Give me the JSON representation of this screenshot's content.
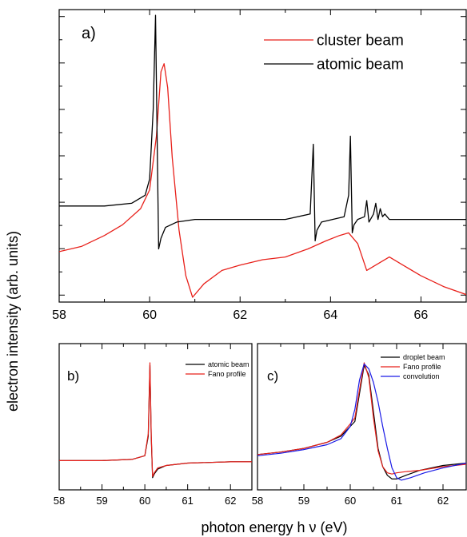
{
  "figure": {
    "ylabel": "electron intensity (arb. units)",
    "xlabel": "photon energy h ν (eV)"
  },
  "chart_data": [
    {
      "panel": "a)",
      "type": "line",
      "xlim": [
        58,
        67
      ],
      "xticks": [
        58,
        60,
        62,
        64,
        66
      ],
      "ylim": [
        0,
        1
      ],
      "yticks_shown_without_labels": true,
      "legend": {
        "placement": "top-right",
        "entries": [
          "cluster beam",
          "atomic beam"
        ]
      },
      "series": [
        {
          "name": "cluster beam",
          "color": "#e8211b",
          "x": [
            58.0,
            58.5,
            59.0,
            59.4,
            59.8,
            60.0,
            60.15,
            60.25,
            60.32,
            60.4,
            60.5,
            60.65,
            60.8,
            60.95,
            61.2,
            61.6,
            62.0,
            62.5,
            63.0,
            63.5,
            63.9,
            64.2,
            64.4,
            64.6,
            64.8,
            65.0,
            65.3,
            65.6,
            66.0,
            66.5,
            67.0
          ],
          "y": [
            0.17,
            0.19,
            0.23,
            0.27,
            0.33,
            0.4,
            0.6,
            0.84,
            0.87,
            0.78,
            0.52,
            0.25,
            0.08,
            0.0,
            0.05,
            0.1,
            0.12,
            0.14,
            0.15,
            0.18,
            0.21,
            0.23,
            0.24,
            0.2,
            0.1,
            0.12,
            0.15,
            0.12,
            0.08,
            0.04,
            0.01
          ]
        },
        {
          "name": "atomic beam",
          "color": "#000000",
          "x": [
            58.0,
            59.0,
            59.6,
            59.9,
            60.0,
            60.08,
            60.13,
            60.17,
            60.2,
            60.25,
            60.35,
            60.6,
            61.0,
            62.0,
            63.0,
            63.55,
            63.62,
            63.66,
            63.7,
            63.8,
            64.3,
            64.4,
            64.44,
            64.48,
            64.52,
            64.6,
            64.75,
            64.8,
            64.85,
            64.95,
            65.0,
            65.05,
            65.1,
            65.15,
            65.2,
            65.3,
            66.0,
            67.0
          ],
          "y": [
            0.34,
            0.34,
            0.35,
            0.38,
            0.44,
            0.7,
            1.05,
            0.55,
            0.18,
            0.22,
            0.26,
            0.28,
            0.29,
            0.29,
            0.29,
            0.31,
            0.57,
            0.21,
            0.25,
            0.28,
            0.3,
            0.38,
            0.6,
            0.24,
            0.27,
            0.29,
            0.3,
            0.36,
            0.28,
            0.31,
            0.35,
            0.29,
            0.33,
            0.3,
            0.31,
            0.29,
            0.29,
            0.29
          ]
        }
      ]
    },
    {
      "panel": "b)",
      "type": "line",
      "xlim": [
        58,
        62.5
      ],
      "xticks": [
        58,
        59,
        60,
        61,
        62
      ],
      "ylim": [
        0,
        1
      ],
      "legend": {
        "placement": "top-right",
        "entries": [
          "atomic beam",
          "Fano profile"
        ]
      },
      "series": [
        {
          "name": "atomic beam",
          "color": "#000000",
          "x": [
            58.0,
            59.0,
            59.7,
            60.0,
            60.08,
            60.12,
            60.15,
            60.18,
            60.22,
            60.3,
            60.5,
            61.0,
            62.0,
            62.5
          ],
          "y": [
            0.2,
            0.2,
            0.21,
            0.24,
            0.4,
            0.98,
            0.4,
            0.06,
            0.09,
            0.13,
            0.16,
            0.18,
            0.19,
            0.19
          ]
        },
        {
          "name": "Fano profile",
          "color": "#e8211b",
          "x": [
            58.0,
            59.0,
            59.7,
            60.0,
            60.08,
            60.12,
            60.15,
            60.18,
            60.22,
            60.3,
            60.5,
            61.0,
            62.0,
            62.5
          ],
          "y": [
            0.2,
            0.2,
            0.21,
            0.24,
            0.42,
            1.0,
            0.42,
            0.07,
            0.1,
            0.14,
            0.16,
            0.18,
            0.19,
            0.19
          ]
        }
      ]
    },
    {
      "panel": "c)",
      "type": "line",
      "xlim": [
        58,
        62.5
      ],
      "xticks": [
        58,
        59,
        60,
        61,
        62
      ],
      "ylim": [
        0,
        1
      ],
      "legend": {
        "placement": "top-right",
        "entries": [
          "droplet beam",
          "Fano profile",
          "convolution"
        ]
      },
      "series": [
        {
          "name": "droplet beam",
          "color": "#000000",
          "x": [
            58.0,
            58.5,
            59.0,
            59.5,
            59.8,
            60.0,
            60.1,
            60.2,
            60.3,
            60.4,
            60.5,
            60.6,
            60.7,
            60.8,
            60.9,
            61.0,
            61.2,
            61.5,
            62.0,
            62.5
          ],
          "y": [
            0.25,
            0.27,
            0.3,
            0.35,
            0.4,
            0.48,
            0.52,
            0.75,
            0.98,
            0.9,
            0.6,
            0.3,
            0.15,
            0.08,
            0.05,
            0.05,
            0.08,
            0.12,
            0.16,
            0.18
          ]
        },
        {
          "name": "Fano profile",
          "color": "#e8211b",
          "x": [
            58.0,
            58.5,
            59.0,
            59.5,
            59.8,
            60.0,
            60.1,
            60.2,
            60.3,
            60.4,
            60.5,
            60.6,
            60.7,
            60.8,
            60.9,
            61.0,
            61.2,
            61.5,
            62.0,
            62.5
          ],
          "y": [
            0.25,
            0.27,
            0.3,
            0.35,
            0.41,
            0.5,
            0.55,
            0.78,
            1.0,
            0.88,
            0.55,
            0.28,
            0.15,
            0.1,
            0.09,
            0.1,
            0.11,
            0.12,
            0.15,
            0.17
          ]
        },
        {
          "name": "convolution",
          "color": "#1a1ae6",
          "x": [
            58.0,
            58.5,
            59.0,
            59.5,
            59.8,
            60.0,
            60.1,
            60.2,
            60.3,
            60.4,
            60.5,
            60.6,
            60.7,
            60.8,
            60.9,
            61.0,
            61.1,
            61.3,
            61.6,
            62.0,
            62.5
          ],
          "y": [
            0.24,
            0.26,
            0.29,
            0.33,
            0.38,
            0.48,
            0.62,
            0.86,
            0.99,
            0.95,
            0.84,
            0.68,
            0.48,
            0.3,
            0.14,
            0.06,
            0.04,
            0.06,
            0.1,
            0.14,
            0.18
          ]
        }
      ]
    }
  ]
}
